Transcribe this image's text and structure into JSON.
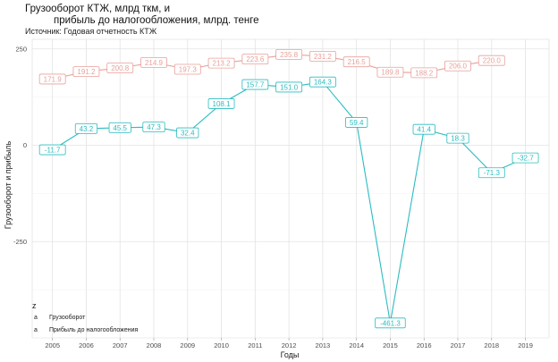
{
  "chart_data": {
    "type": "line",
    "title_line1": "Грузооборот КТЖ, млрд ткм, и",
    "title_line2": "прибыль до налогообложения, млрд. тенге",
    "subtitle": "Источник: Годовая отчетность КТЖ",
    "xlabel": "Годы",
    "ylabel": "Грузооборот и прибыль",
    "x": [
      2005,
      2006,
      2007,
      2008,
      2009,
      2010,
      2011,
      2012,
      2013,
      2014,
      2015,
      2016,
      2017,
      2018,
      2019
    ],
    "yticks": [
      250,
      0,
      -250
    ],
    "ylim": [
      -500,
      275
    ],
    "xlim": [
      2004.4,
      2019.7
    ],
    "grid": true,
    "legend_title": "z",
    "legend_position": "bottom-left",
    "series": [
      {
        "name": "Грузооборот",
        "color": "#e8a09a",
        "x": [
          2005,
          2006,
          2007,
          2008,
          2009,
          2010,
          2011,
          2012,
          2013,
          2014,
          2015,
          2016,
          2017,
          2018
        ],
        "values": [
          171.9,
          191.2,
          200.8,
          214.9,
          197.3,
          213.2,
          223.6,
          235.8,
          231.2,
          216.5,
          189.8,
          188.2,
          206.0,
          220.0
        ],
        "labels": [
          "171.9",
          "191.2",
          "200.8",
          "214.9",
          "197.3",
          "213.2",
          "223.6",
          "235.8",
          "231.2",
          "216.5",
          "189.8",
          "188.2",
          "206.0",
          "220.0"
        ]
      },
      {
        "name": "Прибыль до налогообложения",
        "color": "#2bbcc0",
        "x": [
          2005,
          2006,
          2007,
          2008,
          2009,
          2010,
          2011,
          2012,
          2013,
          2014,
          2015,
          2016,
          2017,
          2018,
          2019
        ],
        "values": [
          -11.7,
          43.2,
          45.5,
          47.3,
          32.4,
          108.1,
          157.7,
          151.0,
          164.3,
          59.4,
          -461.3,
          41.4,
          18.3,
          -71.3,
          -32.7
        ],
        "labels": [
          "-11.7",
          "43.2",
          "45.5",
          "47.3",
          "32.4",
          "108.1",
          "157.7",
          "151.0",
          "164.3",
          "59.4",
          "-461.3",
          "41.4",
          "18.3",
          "-71.3",
          "-32.7"
        ]
      }
    ],
    "legend_key_glyph": "a"
  }
}
